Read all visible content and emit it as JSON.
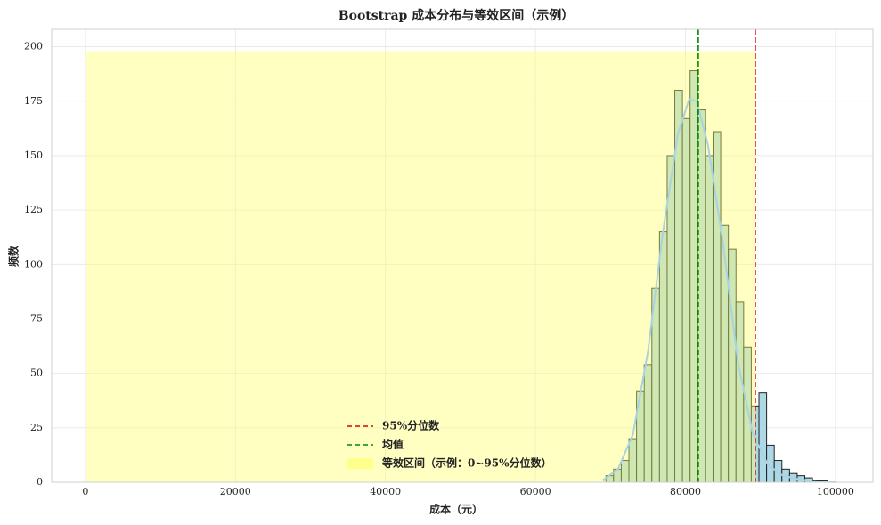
{
  "chart_data": {
    "type": "histogram",
    "title": "Bootstrap 成本分布与等效区间（示例）",
    "xlabel": "成本（元）",
    "ylabel": "频数",
    "bins": [
      69400,
      70420,
      71440,
      72460,
      73480,
      74500,
      75520,
      76540,
      77560,
      78580,
      79600,
      80620,
      81640,
      82660,
      83680,
      84700,
      85720,
      86740,
      87760,
      88780,
      89800,
      90820,
      91840,
      92860,
      93880,
      94900,
      95920,
      96940,
      97960,
      98980,
      100000
    ],
    "counts": [
      3,
      6,
      10,
      20,
      42,
      54,
      89,
      115,
      150,
      180,
      167,
      189,
      171,
      150,
      161,
      118,
      107,
      83,
      62,
      35,
      41,
      17,
      10,
      6,
      4,
      3,
      2,
      1,
      1,
      0.5
    ],
    "bar_color": "#add8e6",
    "kde": {
      "x": [
        69000,
        71000,
        73000,
        75000,
        77000,
        79000,
        80500,
        81500,
        83000,
        85000,
        87000,
        89000,
        91000,
        93000,
        95000,
        97000,
        99000,
        100000
      ],
      "y": [
        1,
        6,
        22,
        60,
        115,
        160,
        176,
        175,
        155,
        110,
        55,
        22,
        8,
        3,
        1.5,
        0.5,
        0.2,
        0.1
      ],
      "color": "#a7d3e2"
    },
    "lines": [
      {
        "name": "95%分位数",
        "x": 89310,
        "color": "#e00000"
      },
      {
        "name": "均值",
        "x": 81710,
        "color": "#008800"
      }
    ],
    "span": {
      "name": "等效区间（示例：0~95%分位数）",
      "x": [
        0,
        89310
      ],
      "top": 198,
      "color": "#ffff66"
    },
    "xlim": [
      -4500,
      105000
    ],
    "ylim": [
      0,
      208
    ],
    "xticks": [
      0,
      20000,
      40000,
      60000,
      80000,
      100000
    ],
    "yticks": [
      0,
      25,
      50,
      75,
      100,
      125,
      150,
      175,
      200
    ],
    "grid": true,
    "legend": "lower center"
  }
}
